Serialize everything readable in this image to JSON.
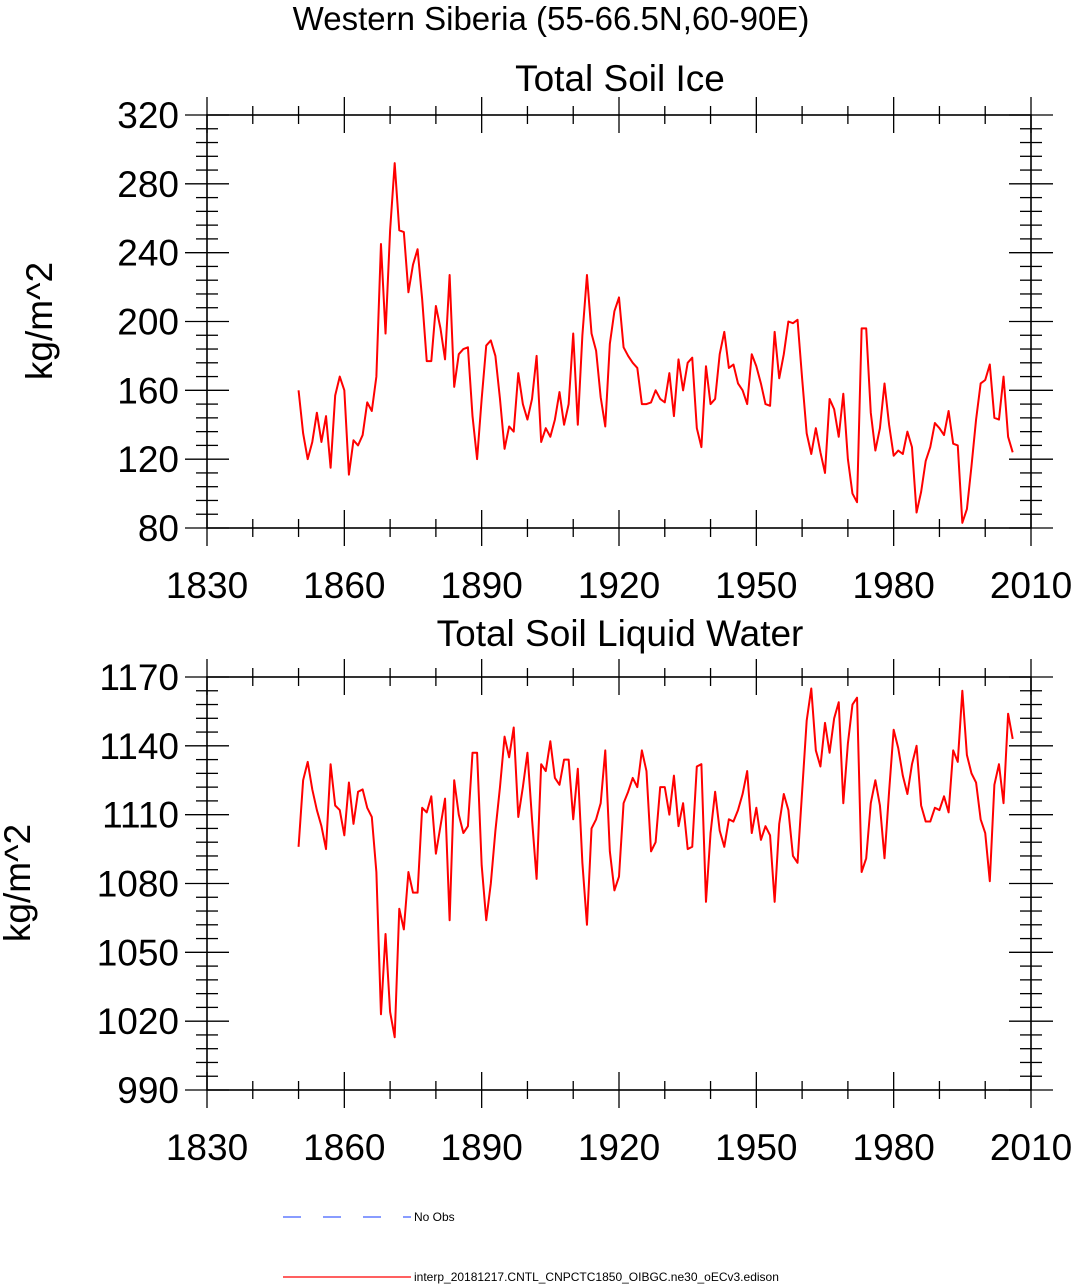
{
  "suptitle": "Western Siberia (55-66.5N,60-90E)",
  "legend": [
    {
      "label": "No Obs",
      "color": "#4060ff",
      "style": "dashed"
    },
    {
      "label": "interp_20181217.CNTL_CNPCTC1850_OIBGC.ne30_oECv3.edison",
      "color": "#ff0000",
      "style": "solid"
    }
  ],
  "chart_data": [
    {
      "type": "line",
      "title": "Total Soil Ice",
      "xlabel": "",
      "ylabel": "kg/m^2",
      "xlim": [
        1830,
        2010
      ],
      "ylim": [
        80,
        320
      ],
      "xticks": [
        1830,
        1860,
        1890,
        1920,
        1950,
        1980,
        2010
      ],
      "yticks": [
        80,
        120,
        160,
        200,
        240,
        280,
        320
      ],
      "x_start": 1850,
      "x_step": 1,
      "series": [
        {
          "name": "interp_20181217.CNTL_CNPCTC1850_OIBGC.ne30_oECv3.edison",
          "color": "#ff0000",
          "values": [
            160,
            135,
            120,
            130,
            147,
            130,
            145,
            115,
            157,
            168,
            160,
            111,
            131,
            128,
            134,
            153,
            148,
            168,
            245,
            193,
            253,
            292,
            253,
            252,
            217,
            233,
            242,
            213,
            177,
            177,
            209,
            196,
            178,
            227,
            162,
            181,
            184,
            185,
            145,
            120,
            155,
            186,
            189,
            180,
            155,
            126,
            139,
            136,
            170,
            152,
            143,
            155,
            180,
            130,
            138,
            133,
            143,
            159,
            140,
            152,
            193,
            140,
            192,
            227,
            193,
            183,
            156,
            139,
            187,
            206,
            214,
            185,
            180,
            176,
            173,
            152,
            152,
            153,
            160,
            155,
            153,
            170,
            145,
            178,
            160,
            176,
            179,
            138,
            127,
            174,
            152,
            155,
            181,
            194,
            173,
            175,
            164,
            160,
            152,
            181,
            174,
            164,
            152,
            151,
            194,
            167,
            181,
            200,
            199,
            201,
            167,
            135,
            123,
            138,
            124,
            112,
            155,
            149,
            133,
            158,
            120,
            100,
            95,
            196,
            196,
            147,
            125,
            138,
            164,
            140,
            122,
            125,
            123,
            136,
            127,
            89,
            101,
            119,
            127,
            141,
            138,
            134,
            148,
            129,
            128,
            83,
            91,
            116,
            143,
            164,
            166,
            175,
            144,
            143,
            168,
            133,
            124
          ]
        }
      ]
    },
    {
      "type": "line",
      "title": "Total Soil Liquid Water",
      "xlabel": "",
      "ylabel": "kg/m^2",
      "xlim": [
        1830,
        2010
      ],
      "ylim": [
        990,
        1170
      ],
      "xticks": [
        1830,
        1860,
        1890,
        1920,
        1950,
        1980,
        2010
      ],
      "yticks": [
        990,
        1020,
        1050,
        1080,
        1110,
        1140,
        1170
      ],
      "x_start": 1850,
      "x_step": 1,
      "series": [
        {
          "name": "interp_20181217.CNTL_CNPCTC1850_OIBGC.ne30_oECv3.edison",
          "color": "#ff0000",
          "values": [
            1096,
            1125,
            1133,
            1121,
            1112,
            1105,
            1095,
            1132,
            1114,
            1112,
            1101,
            1124,
            1106,
            1120,
            1121,
            1113,
            1109,
            1085,
            1023,
            1058,
            1024,
            1013,
            1069,
            1060,
            1085,
            1076,
            1076,
            1113,
            1111,
            1118,
            1093,
            1105,
            1117,
            1064,
            1125,
            1110,
            1102,
            1105,
            1137,
            1137,
            1088,
            1064,
            1080,
            1103,
            1122,
            1144,
            1135,
            1148,
            1109,
            1122,
            1137,
            1108,
            1082,
            1132,
            1129,
            1142,
            1126,
            1123,
            1134,
            1134,
            1108,
            1130,
            1089,
            1062,
            1104,
            1108,
            1115,
            1138,
            1094,
            1077,
            1083,
            1115,
            1120,
            1126,
            1122,
            1138,
            1129,
            1094,
            1098,
            1122,
            1122,
            1110,
            1127,
            1105,
            1115,
            1095,
            1096,
            1131,
            1132,
            1072,
            1102,
            1120,
            1103,
            1096,
            1108,
            1107,
            1112,
            1119,
            1129,
            1102,
            1113,
            1099,
            1105,
            1101,
            1072,
            1106,
            1119,
            1112,
            1092,
            1089,
            1120,
            1151,
            1165,
            1138,
            1131,
            1150,
            1137,
            1152,
            1159,
            1115,
            1141,
            1158,
            1161,
            1085,
            1091,
            1115,
            1125,
            1114,
            1091,
            1120,
            1147,
            1139,
            1127,
            1119,
            1132,
            1140,
            1114,
            1107,
            1107,
            1113,
            1112,
            1118,
            1111,
            1138,
            1133,
            1164,
            1136,
            1128,
            1124,
            1108,
            1102,
            1081,
            1123,
            1132,
            1115,
            1154,
            1143
          ]
        }
      ]
    }
  ]
}
